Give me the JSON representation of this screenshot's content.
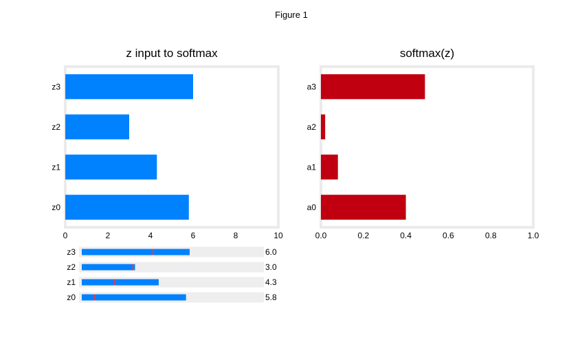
{
  "window": {
    "title": "Figure 1"
  },
  "chart_data": [
    {
      "type": "bar",
      "orientation": "horizontal",
      "title": "z input to softmax",
      "categories": [
        "z0",
        "z1",
        "z2",
        "z3"
      ],
      "values": [
        5.8,
        4.3,
        3.0,
        6.0
      ],
      "xlim": [
        0,
        10
      ],
      "xticks": [
        "0",
        "2",
        "4",
        "6",
        "8",
        "10"
      ],
      "bar_color": "#0081fe",
      "grid": false
    },
    {
      "type": "bar",
      "orientation": "horizontal",
      "title": "softmax(z)",
      "categories": [
        "a0",
        "a1",
        "a2",
        "a3"
      ],
      "values": [
        0.4,
        0.08,
        0.02,
        0.49
      ],
      "xlim": [
        0,
        1.0
      ],
      "xticks": [
        "0.0",
        "0.2",
        "0.4",
        "0.6",
        "0.8",
        "1.0"
      ],
      "bar_color": "#c00010",
      "grid": false
    }
  ],
  "sliders": {
    "min": 0,
    "max": 10,
    "fill_color": "#0081fe",
    "track_color": "#eeeeee",
    "marker_color": "#ff3333",
    "items": [
      {
        "label": "z3",
        "value": 6.0,
        "value_text": "6.0",
        "marker": 4.0
      },
      {
        "label": "z2",
        "value": 3.0,
        "value_text": "3.0",
        "marker": 2.9
      },
      {
        "label": "z1",
        "value": 4.3,
        "value_text": "4.3",
        "marker": 1.9
      },
      {
        "label": "z0",
        "value": 5.8,
        "value_text": "5.8",
        "marker": 0.8
      }
    ]
  }
}
